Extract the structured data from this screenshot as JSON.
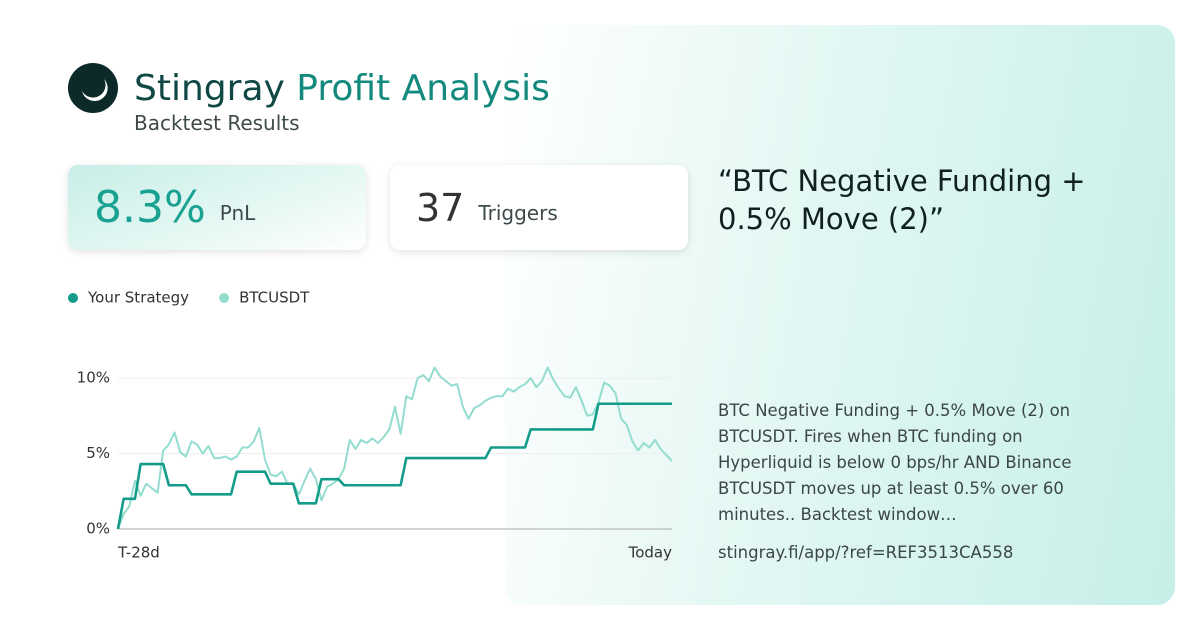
{
  "header": {
    "brand": "Stingray",
    "title": "Profit Analysis",
    "subtitle": "Backtest Results"
  },
  "stats": [
    {
      "value": "8.3%",
      "label": "PnL"
    },
    {
      "value": "37",
      "label": "Triggers"
    }
  ],
  "strategy": {
    "name": "“BTC Negative Funding + 0.5% Move (2)”",
    "description": "BTC Negative Funding + 0.5% Move (2) on BTCUSDT. Fires when BTC funding on Hyperliquid is below 0 bps/hr AND Binance BTCUSDT moves up at least 0.5% over 60 minutes.. Backtest window…",
    "url": "stingray.fi/app/?ref=REF3513CA558"
  },
  "chart_data": {
    "type": "line",
    "categories": [
      "T-28d",
      null,
      null,
      null,
      null,
      null,
      null,
      null,
      null,
      null,
      null,
      null,
      null,
      null,
      null,
      null,
      null,
      null,
      null,
      null,
      null,
      null,
      null,
      null,
      null,
      null,
      null,
      null,
      null,
      null,
      null,
      null,
      null,
      null,
      null,
      null,
      null,
      null,
      null,
      null,
      null,
      null,
      null,
      null,
      null,
      null,
      null,
      null,
      null,
      null,
      null,
      null,
      null,
      null,
      null,
      null,
      null,
      null,
      null,
      null,
      null,
      null,
      null,
      null,
      null,
      null,
      null,
      null,
      null,
      null,
      null,
      null,
      null,
      null,
      null,
      null,
      null,
      null,
      null,
      null,
      null,
      null,
      null,
      null,
      null,
      null,
      null,
      null,
      null,
      null,
      null,
      null,
      null,
      null,
      null,
      null,
      null,
      null,
      "Today"
    ],
    "series": [
      {
        "name": "Your Strategy",
        "color": "#149c8b",
        "values": [
          0,
          2.0,
          2.0,
          2.0,
          4.3,
          4.3,
          4.3,
          4.3,
          4.3,
          2.9,
          2.9,
          2.9,
          2.9,
          2.3,
          2.3,
          2.3,
          2.3,
          2.3,
          2.3,
          2.3,
          2.3,
          3.8,
          3.8,
          3.8,
          3.8,
          3.8,
          3.8,
          3.0,
          3.0,
          3.0,
          3.0,
          3.0,
          1.7,
          1.7,
          1.7,
          1.7,
          3.3,
          3.3,
          3.3,
          3.3,
          2.9,
          2.9,
          2.9,
          2.9,
          2.9,
          2.9,
          2.9,
          2.9,
          2.9,
          2.9,
          2.9,
          4.7,
          4.7,
          4.7,
          4.7,
          4.7,
          4.7,
          4.7,
          4.7,
          4.7,
          4.7,
          4.7,
          4.7,
          4.7,
          4.7,
          4.7,
          5.4,
          5.4,
          5.4,
          5.4,
          5.4,
          5.4,
          5.4,
          6.6,
          6.6,
          6.6,
          6.6,
          6.6,
          6.6,
          6.6,
          6.6,
          6.6,
          6.6,
          6.6,
          6.6,
          8.3,
          8.3,
          8.3,
          8.3,
          8.3,
          8.3,
          8.3,
          8.3,
          8.3,
          8.3,
          8.3,
          8.3,
          8.3,
          8.3
        ]
      },
      {
        "name": "BTCUSDT",
        "color": "#93dccf",
        "values": [
          0,
          1.0,
          1.5,
          3.2,
          2.2,
          3.0,
          2.7,
          2.4,
          5.2,
          5.6,
          6.4,
          5.1,
          4.8,
          5.8,
          5.6,
          5.0,
          5.5,
          4.7,
          4.7,
          4.8,
          4.6,
          4.8,
          5.4,
          5.4,
          5.8,
          6.7,
          4.6,
          3.6,
          3.5,
          3.8,
          3.0,
          3.0,
          2.3,
          3.2,
          4.0,
          3.3,
          1.9,
          2.8,
          3.0,
          3.3,
          4.0,
          5.9,
          5.3,
          5.9,
          5.7,
          6.0,
          5.7,
          6.1,
          6.6,
          8.1,
          6.3,
          8.8,
          8.6,
          10.0,
          10.2,
          9.8,
          10.7,
          10.1,
          9.8,
          9.5,
          9.6,
          8.1,
          7.3,
          8.0,
          8.2,
          8.5,
          8.7,
          8.8,
          8.8,
          9.3,
          9.1,
          9.4,
          9.6,
          10.0,
          9.4,
          9.8,
          10.7,
          9.9,
          9.3,
          8.8,
          8.7,
          9.4,
          8.5,
          7.5,
          7.6,
          8.4,
          9.7,
          9.5,
          9.0,
          7.3,
          6.9,
          5.8,
          5.2,
          5.7,
          5.4,
          5.9,
          5.3,
          4.9,
          4.5
        ]
      }
    ],
    "ylim": [
      0,
      11
    ],
    "yticks": [
      {
        "value": 0,
        "label": "0%"
      },
      {
        "value": 5,
        "label": "5%"
      },
      {
        "value": 10,
        "label": "10%"
      }
    ],
    "grid": true
  }
}
